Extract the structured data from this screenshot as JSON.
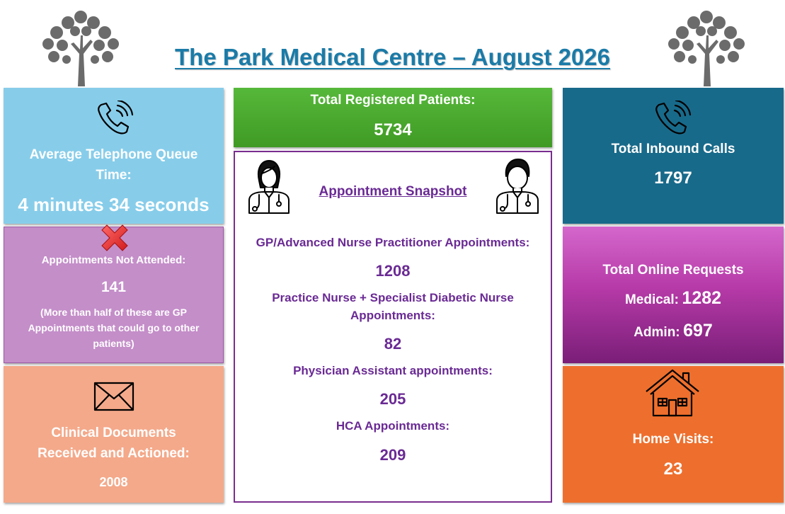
{
  "header": {
    "title": "The Park Medical Centre – August 2026"
  },
  "colors": {
    "title": "#1a7ba8",
    "queue_panel": "#87cdea",
    "dna_panel": "#c48ec9",
    "docs_panel": "#f4a98a",
    "patients_panel": "#4aa52c",
    "snapshot_border": "#7a2d8f",
    "snapshot_text": "#6a2a94",
    "calls_panel": "#186a8a",
    "online_panel": "#b63aa8",
    "home_panel": "#ee6f2d"
  },
  "telephone_queue": {
    "label_line1": "Average Telephone Queue",
    "label_line2": "Time:",
    "value": "4 minutes 34 seconds"
  },
  "not_attended": {
    "label": "Appointments Not Attended:",
    "value": "141",
    "note_line1": "(More than half of these are GP",
    "note_line2": "Appointments that could go to other",
    "note_line3": "patients)"
  },
  "clinical_documents": {
    "label_line1": "Clinical Documents",
    "label_line2": "Received and Actioned:",
    "value": "2008"
  },
  "registered_patients": {
    "label": "Total Registered Patients:",
    "value": "5734"
  },
  "appointment_snapshot": {
    "heading": "Appointment Snapshot",
    "gp_label": "GP/Advanced Nurse Practitioner Appointments:",
    "gp_value": "1208",
    "nurse_label_line1": "Practice Nurse + Specialist Diabetic Nurse",
    "nurse_label_line2": "Appointments:",
    "nurse_value": "82",
    "pa_label": "Physician Assistant appointments:",
    "pa_value": "205",
    "hca_label": "HCA Appointments:",
    "hca_value": "209"
  },
  "inbound_calls": {
    "label": "Total Inbound Calls",
    "value": "1797"
  },
  "online_requests": {
    "label": "Total Online Requests",
    "medical_label": "Medical:",
    "medical_value": "1282",
    "admin_label": "Admin:",
    "admin_value": "697"
  },
  "home_visits": {
    "label": "Home Visits:",
    "value": "23"
  },
  "icons": {
    "tree": "tree-icon",
    "phone": "phone-ringing-icon",
    "cross": "red-cross-icon",
    "envelope": "envelope-icon",
    "female_doctor": "female-doctor-icon",
    "male_doctor": "male-doctor-icon",
    "house": "house-icon"
  }
}
